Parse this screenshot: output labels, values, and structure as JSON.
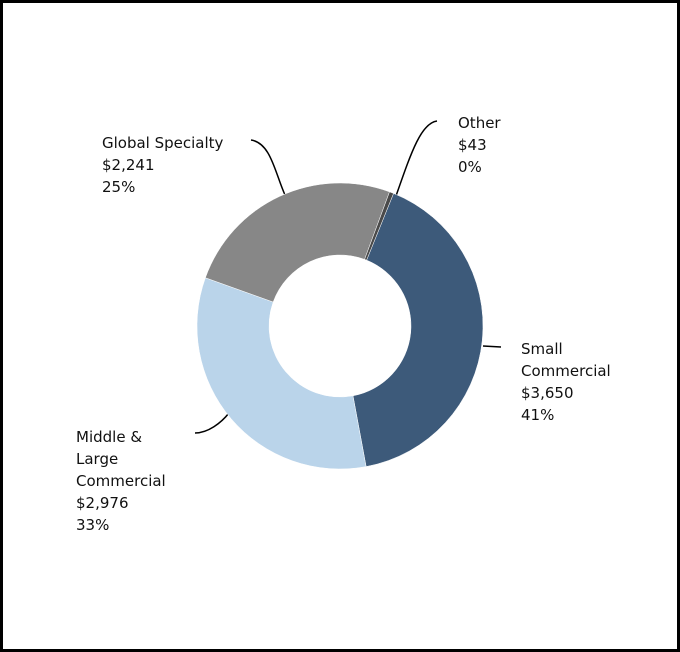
{
  "chart_data": {
    "type": "donut",
    "categories": [
      "Small Commercial",
      "Middle & Large Commercial",
      "Global Specialty",
      "Other"
    ],
    "values": [
      3650,
      2976,
      2241,
      43
    ],
    "value_labels": [
      "$3,650",
      "$2,976",
      "$2,241",
      "$43"
    ],
    "percent_labels": [
      "41%",
      "33%",
      "25%",
      "0%"
    ],
    "colors": [
      "#3d5a7a",
      "#bad4ea",
      "#878787",
      "#4a4a4a"
    ]
  }
}
